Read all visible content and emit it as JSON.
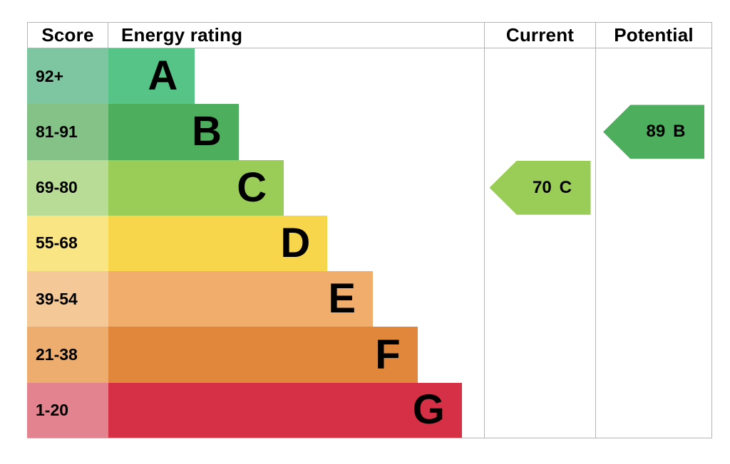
{
  "chart_data": {
    "type": "bar",
    "subtype": "epc-energy-rating",
    "title": "Energy rating",
    "legend_position": "none",
    "grid": false,
    "columns": {
      "score": "Score",
      "energy_rating": "Energy rating",
      "current": "Current",
      "potential": "Potential"
    },
    "bands": [
      {
        "score_range": "92+",
        "grade": "A",
        "bar_color": "#55c486",
        "score_bg": "#7ec5a1",
        "bar_width_pct": 23.0
      },
      {
        "score_range": "81-91",
        "grade": "B",
        "bar_color": "#4daf5d",
        "score_bg": "#84c287",
        "bar_width_pct": 34.7
      },
      {
        "score_range": "69-80",
        "grade": "C",
        "bar_color": "#9acd57",
        "score_bg": "#b8dc96",
        "bar_width_pct": 46.7
      },
      {
        "score_range": "55-68",
        "grade": "D",
        "bar_color": "#f8d64c",
        "score_bg": "#fae584",
        "bar_width_pct": 58.3
      },
      {
        "score_range": "39-54",
        "grade": "E",
        "bar_color": "#f0ad6b",
        "score_bg": "#f4c897",
        "bar_width_pct": 70.4
      },
      {
        "score_range": "21-38",
        "grade": "F",
        "bar_color": "#e0873c",
        "score_bg": "#ecad6e",
        "bar_width_pct": 82.3
      },
      {
        "score_range": "1-20",
        "grade": "G",
        "bar_color": "#d63046",
        "score_bg": "#e2838f",
        "bar_width_pct": 94.1
      }
    ],
    "current": {
      "score": 70,
      "grade": "C",
      "arrow_color": "#9acd57"
    },
    "potential": {
      "score": 89,
      "grade": "B",
      "arrow_color": "#4daf5d"
    }
  }
}
